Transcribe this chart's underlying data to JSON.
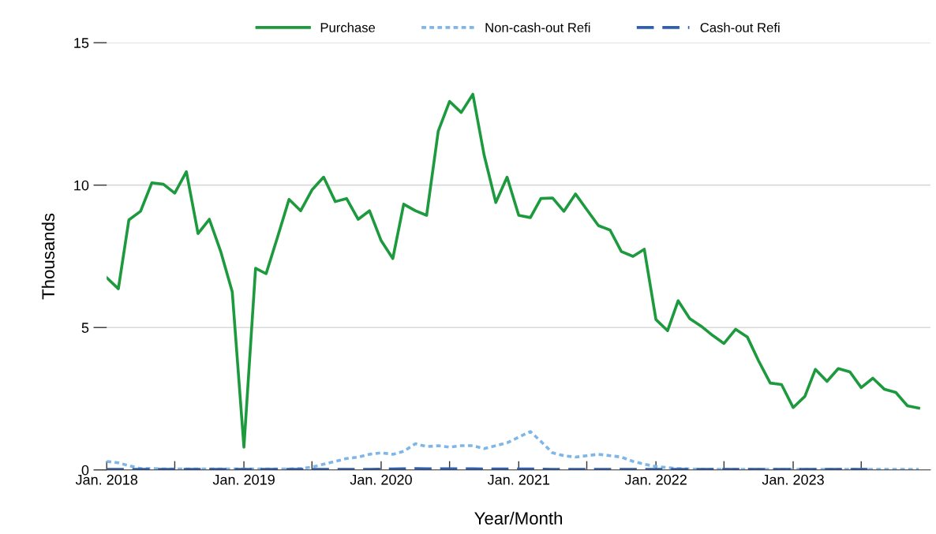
{
  "chart_data": {
    "type": "line",
    "xlabel": "Year/Month",
    "ylabel": "Thousands",
    "x": [
      "2018-01",
      "2018-02",
      "2018-03",
      "2018-04",
      "2018-05",
      "2018-06",
      "2018-07",
      "2018-08",
      "2018-09",
      "2018-10",
      "2018-11",
      "2018-12",
      "2019-01",
      "2019-02",
      "2019-03",
      "2019-04",
      "2019-05",
      "2019-06",
      "2019-07",
      "2019-08",
      "2019-09",
      "2019-10",
      "2019-11",
      "2019-12",
      "2020-01",
      "2020-02",
      "2020-03",
      "2020-04",
      "2020-05",
      "2020-06",
      "2020-07",
      "2020-08",
      "2020-09",
      "2020-10",
      "2020-11",
      "2020-12",
      "2021-01",
      "2021-02",
      "2021-03",
      "2021-04",
      "2021-05",
      "2021-06",
      "2021-07",
      "2021-08",
      "2021-09",
      "2021-10",
      "2021-11",
      "2021-12",
      "2022-01",
      "2022-02",
      "2022-03",
      "2022-04",
      "2022-05",
      "2022-06",
      "2022-07",
      "2022-08",
      "2022-09",
      "2022-10",
      "2022-11",
      "2022-12",
      "2023-01",
      "2023-02",
      "2023-03",
      "2023-04",
      "2023-05",
      "2023-06",
      "2023-07",
      "2023-08",
      "2023-09",
      "2023-10",
      "2023-11",
      "2023-12"
    ],
    "series": [
      {
        "name": "Purchase",
        "color": "#1e9a3e",
        "line_style": "solid",
        "values": [
          6.75,
          6.36,
          8.78,
          9.08,
          10.08,
          10.03,
          9.72,
          10.47,
          8.3,
          8.8,
          7.64,
          6.25,
          0.8,
          7.08,
          6.89,
          8.2,
          9.5,
          9.1,
          9.83,
          10.28,
          9.42,
          9.53,
          8.8,
          9.1,
          8.05,
          7.42,
          9.33,
          9.1,
          8.94,
          11.9,
          12.94,
          12.55,
          13.19,
          11.05,
          9.39,
          10.28,
          8.94,
          8.86,
          9.53,
          9.55,
          9.08,
          9.69,
          9.14,
          8.58,
          8.42,
          7.67,
          7.5,
          7.75,
          5.28,
          4.89,
          5.94,
          5.31,
          5.05,
          4.72,
          4.44,
          4.94,
          4.67,
          3.83,
          3.05,
          3.0,
          2.19,
          2.58,
          3.53,
          3.11,
          3.56,
          3.44,
          2.89,
          3.22,
          2.83,
          2.72,
          2.25,
          2.17
        ]
      },
      {
        "name": "Non-cash-out Refi",
        "color": "#7fb6e8",
        "line_style": "dotted",
        "values": [
          0.3,
          0.25,
          0.15,
          0.05,
          0.05,
          0.03,
          0.03,
          0.03,
          0.03,
          0.03,
          0.03,
          0.03,
          0.03,
          0.03,
          0.03,
          0.03,
          0.03,
          0.05,
          0.1,
          0.2,
          0.3,
          0.4,
          0.45,
          0.55,
          0.6,
          0.55,
          0.65,
          0.92,
          0.82,
          0.85,
          0.8,
          0.85,
          0.85,
          0.75,
          0.85,
          0.95,
          1.15,
          1.35,
          1.0,
          0.6,
          0.5,
          0.45,
          0.5,
          0.55,
          0.5,
          0.45,
          0.3,
          0.2,
          0.12,
          0.08,
          0.05,
          0.03,
          0.02,
          0.02,
          0.02,
          0.02,
          0.02,
          0.02,
          0.02,
          0.02,
          0.02,
          0.02,
          0.02,
          0.02,
          0.02,
          0.02,
          0.02,
          0.02,
          0.02,
          0.02,
          0.02,
          0.02
        ]
      },
      {
        "name": "Cash-out Refi",
        "color": "#2e5fb0",
        "line_style": "dashed",
        "values": [
          0.02,
          0.02,
          0.02,
          0.02,
          0.02,
          0.02,
          0.02,
          0.02,
          0.02,
          0.02,
          0.02,
          0.02,
          0.02,
          0.02,
          0.02,
          0.02,
          0.02,
          0.02,
          0.02,
          0.02,
          0.02,
          0.02,
          0.02,
          0.02,
          0.03,
          0.03,
          0.04,
          0.05,
          0.04,
          0.04,
          0.04,
          0.04,
          0.04,
          0.03,
          0.03,
          0.03,
          0.03,
          0.03,
          0.03,
          0.02,
          0.02,
          0.02,
          0.02,
          0.02,
          0.02,
          0.02,
          0.02,
          0.02,
          0.02,
          0.02,
          0.02,
          0.02,
          0.02,
          0.02,
          0.02,
          0.02,
          0.02,
          0.02,
          0.02,
          0.02,
          0.02,
          0.02,
          0.02,
          0.02,
          0.02,
          0.02,
          0.02,
          0.02,
          null,
          null,
          null,
          null
        ]
      }
    ],
    "xlim": [
      "2018-01",
      "2024-01"
    ],
    "xticks": [
      {
        "value": "2018-01",
        "label": "Jan. 2018"
      },
      {
        "value": "2018-07",
        "label": null
      },
      {
        "value": "2019-01",
        "label": "Jan. 2019"
      },
      {
        "value": "2019-07",
        "label": null
      },
      {
        "value": "2020-01",
        "label": "Jan. 2020"
      },
      {
        "value": "2020-07",
        "label": null
      },
      {
        "value": "2021-01",
        "label": "Jan. 2021"
      },
      {
        "value": "2021-07",
        "label": null
      },
      {
        "value": "2022-01",
        "label": "Jan. 2022"
      },
      {
        "value": "2022-07",
        "label": null
      },
      {
        "value": "2023-01",
        "label": "Jan. 2023"
      },
      {
        "value": "2023-07",
        "label": null
      }
    ],
    "ylim": [
      0,
      15
    ],
    "yticks": [
      0,
      5,
      10,
      15
    ],
    "grid": "y",
    "legend": "top",
    "marker": "none"
  }
}
